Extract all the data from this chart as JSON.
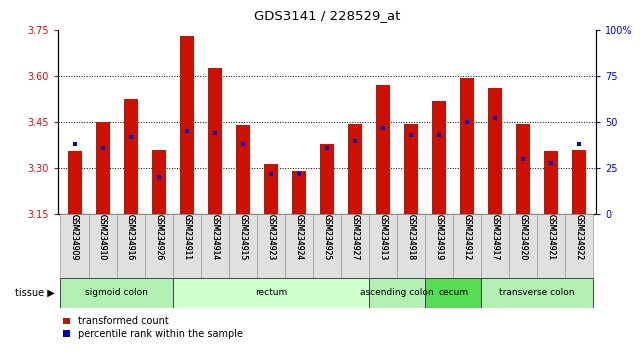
{
  "title": "GDS3141 / 228529_at",
  "samples": [
    "GSM234909",
    "GSM234910",
    "GSM234916",
    "GSM234926",
    "GSM234911",
    "GSM234914",
    "GSM234915",
    "GSM234923",
    "GSM234924",
    "GSM234925",
    "GSM234927",
    "GSM234913",
    "GSM234918",
    "GSM234919",
    "GSM234912",
    "GSM234917",
    "GSM234920",
    "GSM234921",
    "GSM234922"
  ],
  "red_values": [
    3.355,
    3.45,
    3.525,
    3.36,
    3.73,
    3.625,
    3.44,
    3.315,
    3.29,
    3.38,
    3.445,
    3.57,
    3.445,
    3.52,
    3.595,
    3.56,
    3.445,
    3.355,
    3.36
  ],
  "blue_values": [
    38,
    36,
    42,
    20,
    45,
    44,
    38,
    22,
    22,
    36,
    40,
    47,
    43,
    43,
    50,
    52,
    30,
    28,
    38
  ],
  "base": 3.15,
  "ylim_left": [
    3.15,
    3.75
  ],
  "ylim_right": [
    0,
    100
  ],
  "yticks_left": [
    3.15,
    3.3,
    3.45,
    3.6,
    3.75
  ],
  "yticks_right": [
    0,
    25,
    50,
    75,
    100
  ],
  "grid_values": [
    3.3,
    3.45,
    3.6
  ],
  "tissue_groups": [
    {
      "label": "sigmoid colon",
      "start": 0,
      "end": 4,
      "color": "#b3f0b3"
    },
    {
      "label": "rectum",
      "start": 4,
      "end": 11,
      "color": "#ccffcc"
    },
    {
      "label": "ascending colon",
      "start": 11,
      "end": 13,
      "color": "#b3f0b3"
    },
    {
      "label": "cecum",
      "start": 13,
      "end": 15,
      "color": "#55dd55"
    },
    {
      "label": "transverse colon",
      "start": 15,
      "end": 19,
      "color": "#b3f0b3"
    }
  ],
  "bar_color": "#cc1100",
  "blue_color": "#0000cc",
  "bar_width": 0.5,
  "legend_red": "transformed count",
  "legend_blue": "percentile rank within the sample",
  "tissue_label": "tissue"
}
